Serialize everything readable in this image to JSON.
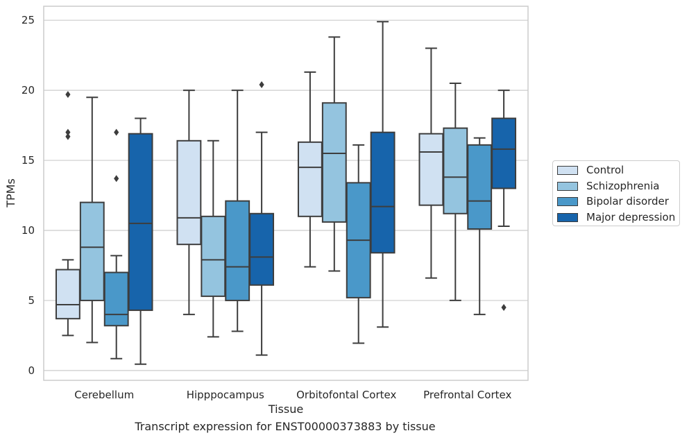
{
  "chart_data": {
    "type": "box",
    "title": "Transcript expression for ENST00000373883 by tissue",
    "xlabel": "Tissue",
    "ylabel": "TPMs",
    "ylim": [
      -0.7,
      26
    ],
    "yticks": [
      0,
      5,
      10,
      15,
      20,
      25
    ],
    "grid": "horizontal",
    "legend_position": "right",
    "categories": [
      "Cerebellum",
      "Hipppocampus",
      "Orbitofontal Cortex",
      "Prefrontal Cortex"
    ],
    "series": [
      {
        "name": "Control",
        "color": "#d0e1f2",
        "boxes": [
          {
            "whislo": 2.5,
            "q1": 3.7,
            "med": 4.7,
            "q3": 7.2,
            "whishi": 7.9,
            "fliers": []
          },
          {
            "whislo": 4.0,
            "q1": 9.0,
            "med": 10.9,
            "q3": 16.4,
            "whishi": 20.0,
            "fliers": []
          },
          {
            "whislo": 7.4,
            "q1": 11.0,
            "med": 14.5,
            "q3": 16.3,
            "whishi": 21.3,
            "fliers": []
          },
          {
            "whislo": 6.6,
            "q1": 11.8,
            "med": 15.6,
            "q3": 16.9,
            "whishi": 23.0,
            "fliers": []
          }
        ]
      },
      {
        "name": "Schizophrenia",
        "color": "#94c4df",
        "boxes": [
          {
            "whislo": 2.0,
            "q1": 5.0,
            "med": 8.8,
            "q3": 12.0,
            "whishi": 19.5,
            "fliers": []
          },
          {
            "whislo": 2.4,
            "q1": 5.3,
            "med": 7.9,
            "q3": 11.0,
            "whishi": 16.4,
            "fliers": []
          },
          {
            "whislo": 7.1,
            "q1": 10.6,
            "med": 15.5,
            "q3": 19.1,
            "whishi": 23.8,
            "fliers": []
          },
          {
            "whislo": 5.0,
            "q1": 11.2,
            "med": 13.8,
            "q3": 17.3,
            "whishi": 20.5,
            "fliers": []
          }
        ]
      },
      {
        "name": "Bipolar disorder",
        "color": "#4a98c9",
        "boxes": [
          {
            "whislo": 0.85,
            "q1": 3.2,
            "med": 4.0,
            "q3": 7.0,
            "whishi": 8.2,
            "fliers": [
              13.7,
              17.0
            ]
          },
          {
            "whislo": 2.8,
            "q1": 5.0,
            "med": 7.4,
            "q3": 12.1,
            "whishi": 20.0,
            "fliers": []
          },
          {
            "whislo": 1.95,
            "q1": 5.2,
            "med": 9.3,
            "q3": 13.4,
            "whishi": 16.1,
            "fliers": []
          },
          {
            "whislo": 4.0,
            "q1": 10.1,
            "med": 12.1,
            "q3": 16.1,
            "whishi": 16.6,
            "fliers": []
          }
        ]
      },
      {
        "name": "Major depression",
        "color": "#1764ab",
        "boxes": [
          {
            "whislo": 0.45,
            "q1": 4.3,
            "med": 10.5,
            "q3": 16.9,
            "whishi": 18.0,
            "fliers": []
          },
          {
            "whislo": 1.1,
            "q1": 6.1,
            "med": 8.1,
            "q3": 11.2,
            "whishi": 17.0,
            "fliers": [
              20.4
            ]
          },
          {
            "whislo": 3.1,
            "q1": 8.4,
            "med": 11.7,
            "q3": 17.0,
            "whishi": 24.9,
            "fliers": []
          },
          {
            "whislo": 10.3,
            "q1": 13.0,
            "med": 15.8,
            "q3": 18.0,
            "whishi": 20.0,
            "fliers": [
              4.5
            ]
          }
        ]
      }
    ],
    "extra_fliers": [
      {
        "category": "Cerebellum",
        "series": "Control",
        "values": [
          16.7,
          17.0,
          19.7
        ]
      }
    ]
  }
}
